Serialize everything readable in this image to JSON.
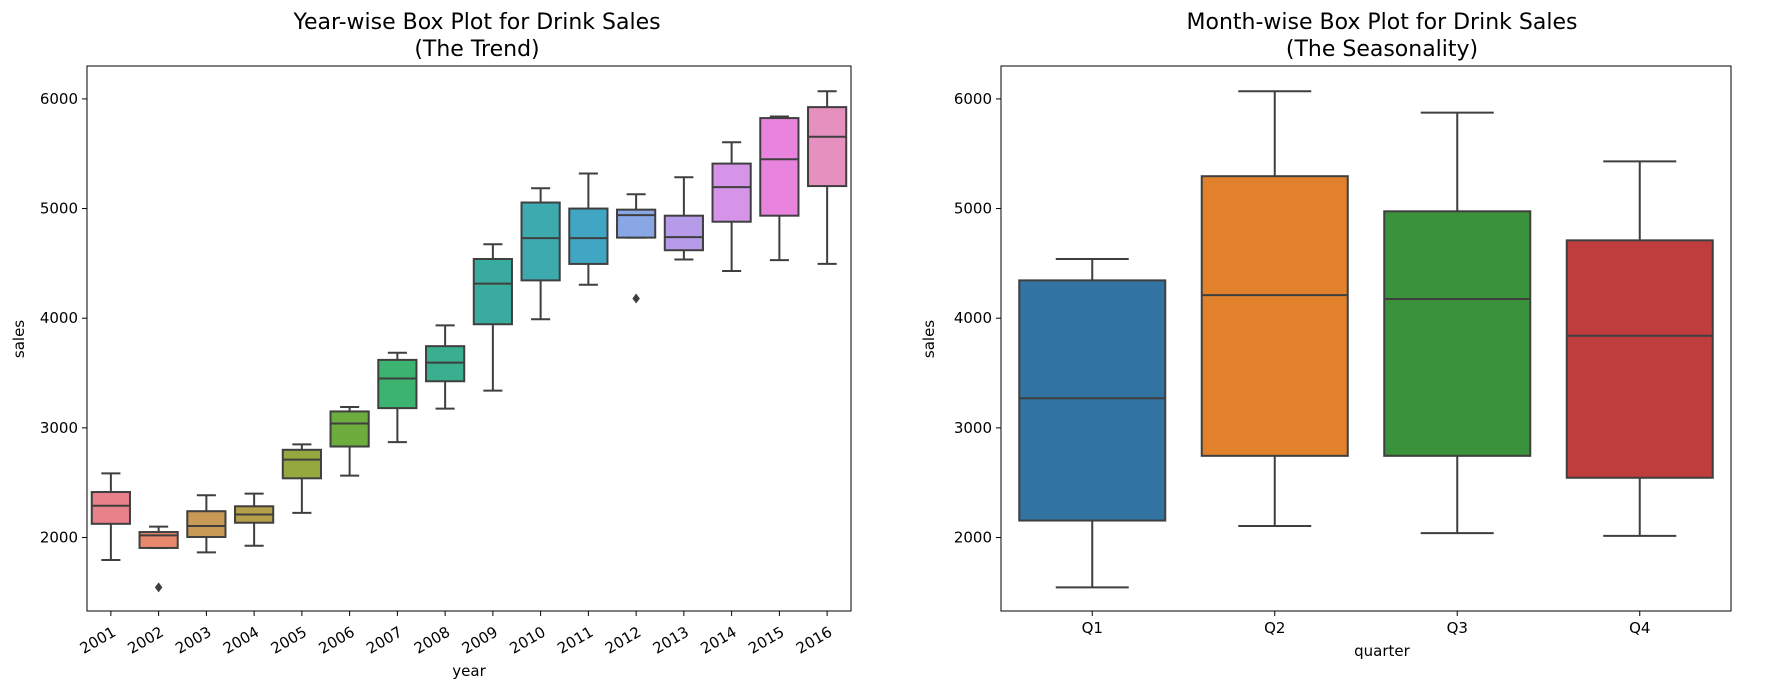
{
  "chart_data": [
    {
      "type": "box",
      "title": "Year-wise Box Plot for Drink Sales",
      "subtitle": "(The Trend)",
      "xlabel": "year",
      "ylabel": "sales",
      "ylim": [
        1330,
        6300
      ],
      "yticks": [
        2000,
        3000,
        4000,
        5000,
        6000
      ],
      "grid": false,
      "categories": [
        "2001",
        "2002",
        "2003",
        "2004",
        "2005",
        "2006",
        "2007",
        "2008",
        "2009",
        "2010",
        "2011",
        "2012",
        "2013",
        "2014",
        "2015",
        "2016"
      ],
      "colors": [
        "#e8818a",
        "#e8886c",
        "#c99a55",
        "#b4a048",
        "#93a83f",
        "#6dad3e",
        "#3cb36e",
        "#3aaf8f",
        "#3aac9f",
        "#3caaae",
        "#41a6c3",
        "#89a6e5",
        "#b59be8",
        "#d694e9",
        "#e884dd",
        "#e590bf"
      ],
      "boxes": [
        {
          "whislo": 1795,
          "q1": 2125,
          "med": 2290,
          "q3": 2415,
          "whishi": 2585,
          "fliers": []
        },
        {
          "whislo": 1905,
          "q1": 1905,
          "med": 2020,
          "q3": 2050,
          "whishi": 2100,
          "fliers": [
            1545
          ]
        },
        {
          "whislo": 1865,
          "q1": 2005,
          "med": 2105,
          "q3": 2240,
          "whishi": 2385,
          "fliers": []
        },
        {
          "whislo": 1925,
          "q1": 2135,
          "med": 2210,
          "q3": 2285,
          "whishi": 2400,
          "fliers": []
        },
        {
          "whislo": 2225,
          "q1": 2540,
          "med": 2710,
          "q3": 2800,
          "whishi": 2850,
          "fliers": []
        },
        {
          "whislo": 2565,
          "q1": 2830,
          "med": 3040,
          "q3": 3150,
          "whishi": 3190,
          "fliers": []
        },
        {
          "whislo": 2870,
          "q1": 3180,
          "med": 3450,
          "q3": 3620,
          "whishi": 3685,
          "fliers": []
        },
        {
          "whislo": 3175,
          "q1": 3425,
          "med": 3595,
          "q3": 3745,
          "whishi": 3935,
          "fliers": []
        },
        {
          "whislo": 3340,
          "q1": 3945,
          "med": 4315,
          "q3": 4540,
          "whishi": 4675,
          "fliers": []
        },
        {
          "whislo": 3990,
          "q1": 4345,
          "med": 4730,
          "q3": 5055,
          "whishi": 5185,
          "fliers": []
        },
        {
          "whislo": 4305,
          "q1": 4495,
          "med": 4730,
          "q3": 5000,
          "whishi": 5320,
          "fliers": []
        },
        {
          "whislo": 4735,
          "q1": 4735,
          "med": 4940,
          "q3": 4990,
          "whishi": 5130,
          "fliers": [
            4180
          ]
        },
        {
          "whislo": 4535,
          "q1": 4620,
          "med": 4740,
          "q3": 4935,
          "whishi": 5285,
          "fliers": []
        },
        {
          "whislo": 4430,
          "q1": 4880,
          "med": 5195,
          "q3": 5410,
          "whishi": 5605,
          "fliers": []
        },
        {
          "whislo": 4530,
          "q1": 4935,
          "med": 5450,
          "q3": 5825,
          "whishi": 5840,
          "fliers": []
        },
        {
          "whislo": 4495,
          "q1": 5205,
          "med": 5655,
          "q3": 5925,
          "whishi": 6070,
          "fliers": []
        }
      ]
    },
    {
      "type": "box",
      "title": "Month-wise Box Plot for Drink Sales",
      "subtitle": "(The Seasonality)",
      "xlabel": "quarter",
      "ylabel": "sales",
      "ylim": [
        1330,
        6300
      ],
      "yticks": [
        2000,
        3000,
        4000,
        5000,
        6000
      ],
      "grid": false,
      "categories": [
        "Q1",
        "Q2",
        "Q3",
        "Q4"
      ],
      "colors": [
        "#3274a1",
        "#e1812c",
        "#3a923a",
        "#c03d3e"
      ],
      "boxes": [
        {
          "whislo": 1545,
          "q1": 2155,
          "med": 3270,
          "q3": 4345,
          "whishi": 4540,
          "fliers": []
        },
        {
          "whislo": 2105,
          "q1": 2745,
          "med": 4210,
          "q3": 5295,
          "whishi": 6070,
          "fliers": []
        },
        {
          "whislo": 2040,
          "q1": 2745,
          "med": 4175,
          "q3": 4975,
          "whishi": 5875,
          "fliers": []
        },
        {
          "whislo": 2015,
          "q1": 2545,
          "med": 3840,
          "q3": 4710,
          "whishi": 5430,
          "fliers": []
        }
      ]
    }
  ]
}
